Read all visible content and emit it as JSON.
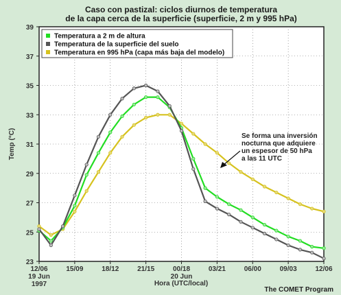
{
  "chart_data": {
    "type": "line",
    "title": [
      "Caso con pastizal: ciclos diurnos de temperatura",
      "de la capa cerca de la superficie (superficie, 2 m y 995 hPa)"
    ],
    "ylabel": "Temp (°C)",
    "xlabel": "Hora (UTC/local)",
    "credit": "The COMET Program",
    "ylim": [
      23,
      39
    ],
    "yticks": [
      23,
      25,
      27,
      29,
      31,
      33,
      35,
      37,
      39
    ],
    "xlim": [
      0,
      24
    ],
    "xticks": [
      {
        "x": 0,
        "lines": [
          "12/06",
          "19 Jun",
          "1997"
        ]
      },
      {
        "x": 3,
        "lines": [
          "15/09"
        ]
      },
      {
        "x": 6,
        "lines": [
          "18/12"
        ]
      },
      {
        "x": 9,
        "lines": [
          "21/15"
        ]
      },
      {
        "x": 12,
        "lines": [
          "00/18",
          "20 Jun"
        ]
      },
      {
        "x": 15,
        "lines": [
          "03/21"
        ]
      },
      {
        "x": 18,
        "lines": [
          "06/00"
        ]
      },
      {
        "x": 21,
        "lines": [
          "09/03"
        ]
      },
      {
        "x": 24,
        "lines": [
          "12/06"
        ]
      }
    ],
    "legend": {
      "placement": "top-left"
    },
    "series": [
      {
        "name": "Temperatura a 2 m de altura",
        "color": "#22dd22",
        "marker": "#9ee69e",
        "x": [
          0,
          1,
          2,
          3,
          4,
          5,
          6,
          7,
          8,
          9,
          10,
          11,
          12,
          13,
          14,
          15,
          16,
          17,
          18,
          19,
          20,
          21,
          22,
          23,
          24
        ],
        "y": [
          25.1,
          24.4,
          25.3,
          26.8,
          28.9,
          30.4,
          31.8,
          32.9,
          33.7,
          34.2,
          34.2,
          33.5,
          32.1,
          30.0,
          28.0,
          27.4,
          26.9,
          26.5,
          26.0,
          25.5,
          25.1,
          24.7,
          24.4,
          24.0,
          23.9
        ]
      },
      {
        "name": "Temperatura de la superficie del suelo",
        "color": "#555555",
        "marker": "#bfbfbf",
        "x": [
          0,
          1,
          2,
          3,
          4,
          5,
          6,
          7,
          8,
          9,
          10,
          11,
          12,
          13,
          14,
          15,
          16,
          17,
          18,
          19,
          20,
          21,
          22,
          23,
          24
        ],
        "y": [
          25.2,
          24.1,
          25.4,
          27.5,
          29.6,
          31.5,
          33.0,
          34.1,
          34.8,
          35.0,
          34.6,
          33.6,
          31.9,
          29.3,
          27.1,
          26.6,
          26.2,
          25.7,
          25.3,
          24.9,
          24.5,
          24.1,
          23.8,
          23.6,
          23.2
        ]
      },
      {
        "name": "Temperatura en 995 hPa (capa más baja del modelo)",
        "color": "#d6c21e",
        "marker": "#e6da7a",
        "x": [
          0,
          1,
          2,
          3,
          4,
          5,
          6,
          7,
          8,
          9,
          10,
          11,
          12,
          13,
          14,
          15,
          16,
          17,
          18,
          19,
          20,
          21,
          22,
          23,
          24
        ],
        "y": [
          25.4,
          24.8,
          25.2,
          26.4,
          27.8,
          29.1,
          30.4,
          31.5,
          32.3,
          32.8,
          33.0,
          33.0,
          32.4,
          31.7,
          31.0,
          30.4,
          29.7,
          29.1,
          28.6,
          28.1,
          27.7,
          27.3,
          26.9,
          26.6,
          26.4
        ]
      }
    ],
    "annotation": {
      "lines": [
        "Se forma una inversión",
        "nocturna que adquiere",
        "un espesor de 50 hPa",
        "a las 11 UTC"
      ]
    },
    "grid": true
  }
}
